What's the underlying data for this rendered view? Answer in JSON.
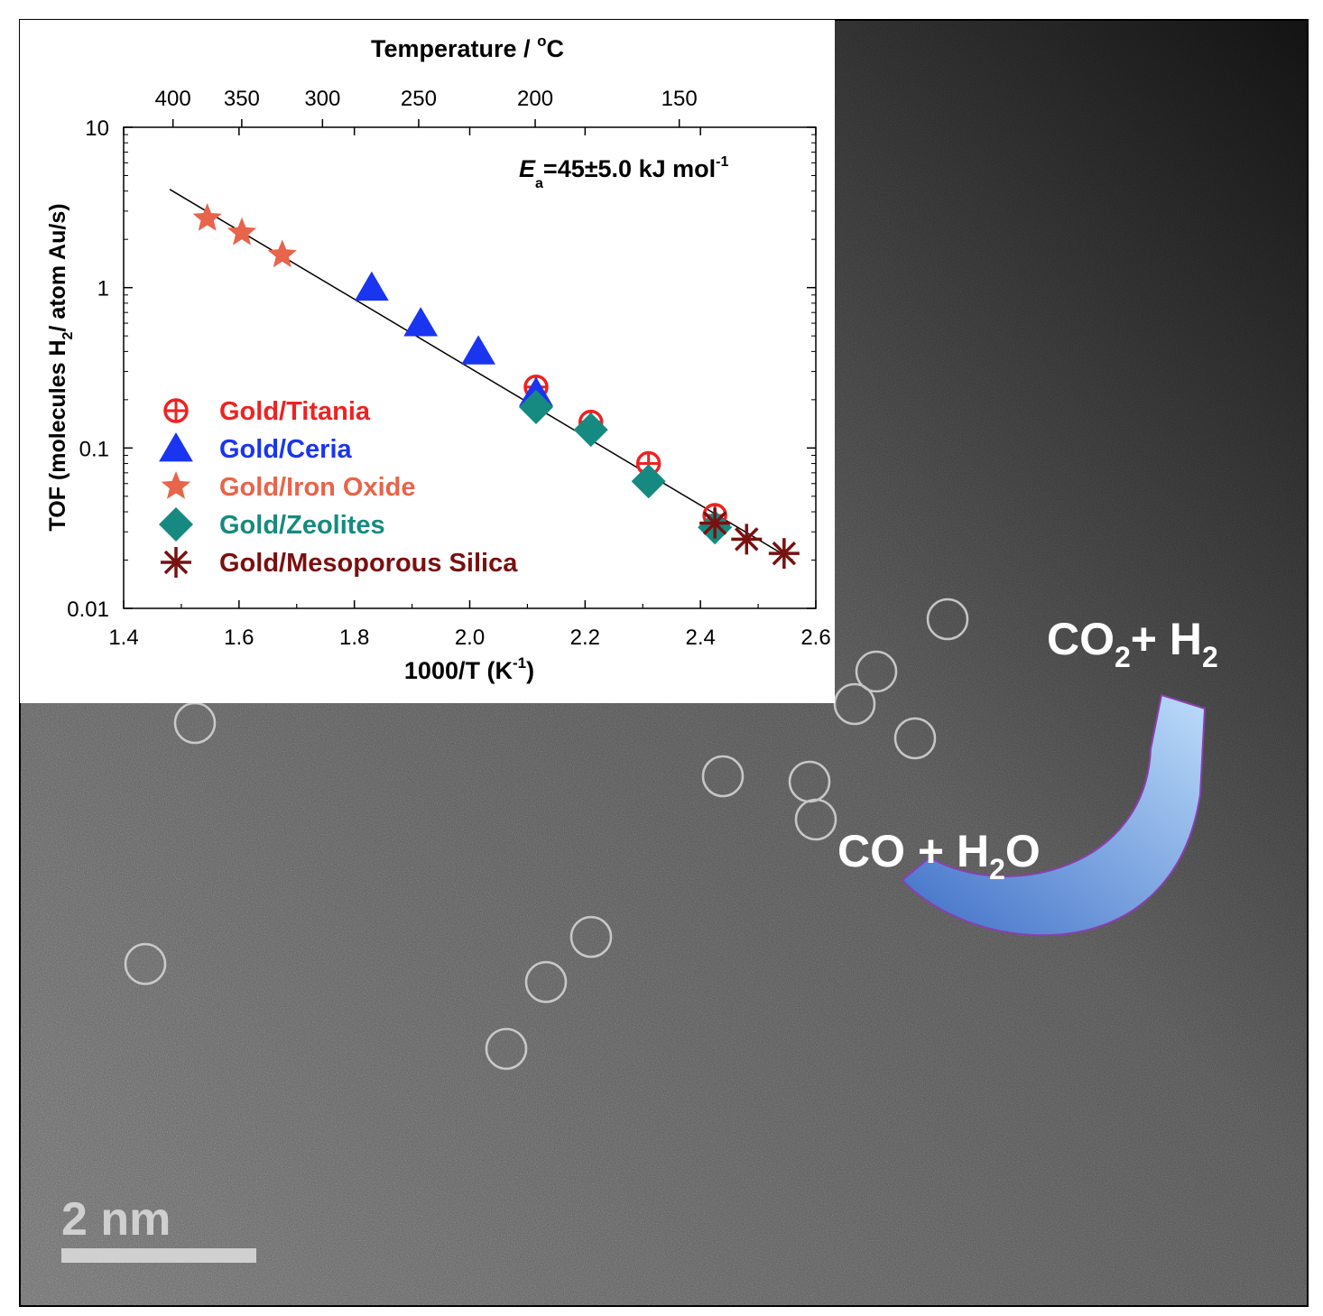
{
  "micrograph": {
    "scale_bar_label": "2 nm",
    "reaction_reactants": {
      "a": "CO + H",
      "sub": "2",
      "b": "O"
    },
    "reaction_products": {
      "a": "CO",
      "sub1": "2",
      "b": "+ H",
      "sub2": "2"
    },
    "colors": {
      "arrow_fill_light": "#9ec7f0",
      "arrow_fill_dark": "#3f6fc7",
      "arrow_stroke": "#8a3fb0",
      "atom_circle": "#d9d9d9"
    }
  },
  "chart_data": {
    "type": "scatter",
    "title": "",
    "annotation": {
      "E": "E",
      "sub": "a",
      "text": "=45±5.0 kJ mol",
      "sup": "-1"
    },
    "xlabel": {
      "main": "1000/T (K",
      "sup": "-1",
      "end": ")"
    },
    "ylabel": {
      "a": "TOF (molecules H",
      "sub": "2",
      "b": "/ atom Au/s)"
    },
    "top_axis_label": {
      "main": "Temperature / ",
      "sup": "o",
      "end": "C"
    },
    "x_range": [
      1.4,
      2.6
    ],
    "y_range": [
      0.01,
      10
    ],
    "y_scale": "log",
    "x_ticks": [
      "1.4",
      "1.6",
      "1.8",
      "2.0",
      "2.2",
      "2.4",
      "2.6"
    ],
    "y_ticks": [
      "0.01",
      "0.1",
      "1",
      "10"
    ],
    "top_ticks": [
      {
        "value": 400,
        "label": "400"
      },
      {
        "value": 350,
        "label": "350"
      },
      {
        "value": 300,
        "label": "300"
      },
      {
        "value": 250,
        "label": "250"
      },
      {
        "value": 200,
        "label": "200"
      },
      {
        "value": 150,
        "label": "150"
      }
    ],
    "legend_position": "center-left",
    "series": [
      {
        "name": "Gold/Titania",
        "marker": "circle-plus",
        "color": "#ee2222",
        "x": [
          2.115,
          2.21,
          2.31,
          2.425
        ],
        "y": [
          0.24,
          0.145,
          0.08,
          0.038
        ]
      },
      {
        "name": "Gold/Ceria",
        "marker": "triangle",
        "color": "#1a35f0",
        "x": [
          1.83,
          1.915,
          2.015,
          2.115
        ],
        "y": [
          1.0,
          0.6,
          0.4,
          0.22
        ]
      },
      {
        "name": "Gold/Iron Oxide",
        "marker": "star",
        "color": "#e8644a",
        "x": [
          1.545,
          1.605,
          1.675
        ],
        "y": [
          2.7,
          2.2,
          1.6
        ]
      },
      {
        "name": "Gold/Zeolites",
        "marker": "diamond",
        "color": "#168a80",
        "x": [
          2.115,
          2.21,
          2.31,
          2.425
        ],
        "y": [
          0.18,
          0.13,
          0.062,
          0.032
        ]
      },
      {
        "name": "Gold/Mesoporous Silica",
        "marker": "asterisk",
        "color": "#7a1010",
        "x": [
          2.425,
          2.48,
          2.545
        ],
        "y": [
          0.034,
          0.027,
          0.022
        ]
      }
    ],
    "fit_line": {
      "x": [
        1.48,
        2.56
      ],
      "y": [
        4.1,
        0.02
      ]
    }
  }
}
